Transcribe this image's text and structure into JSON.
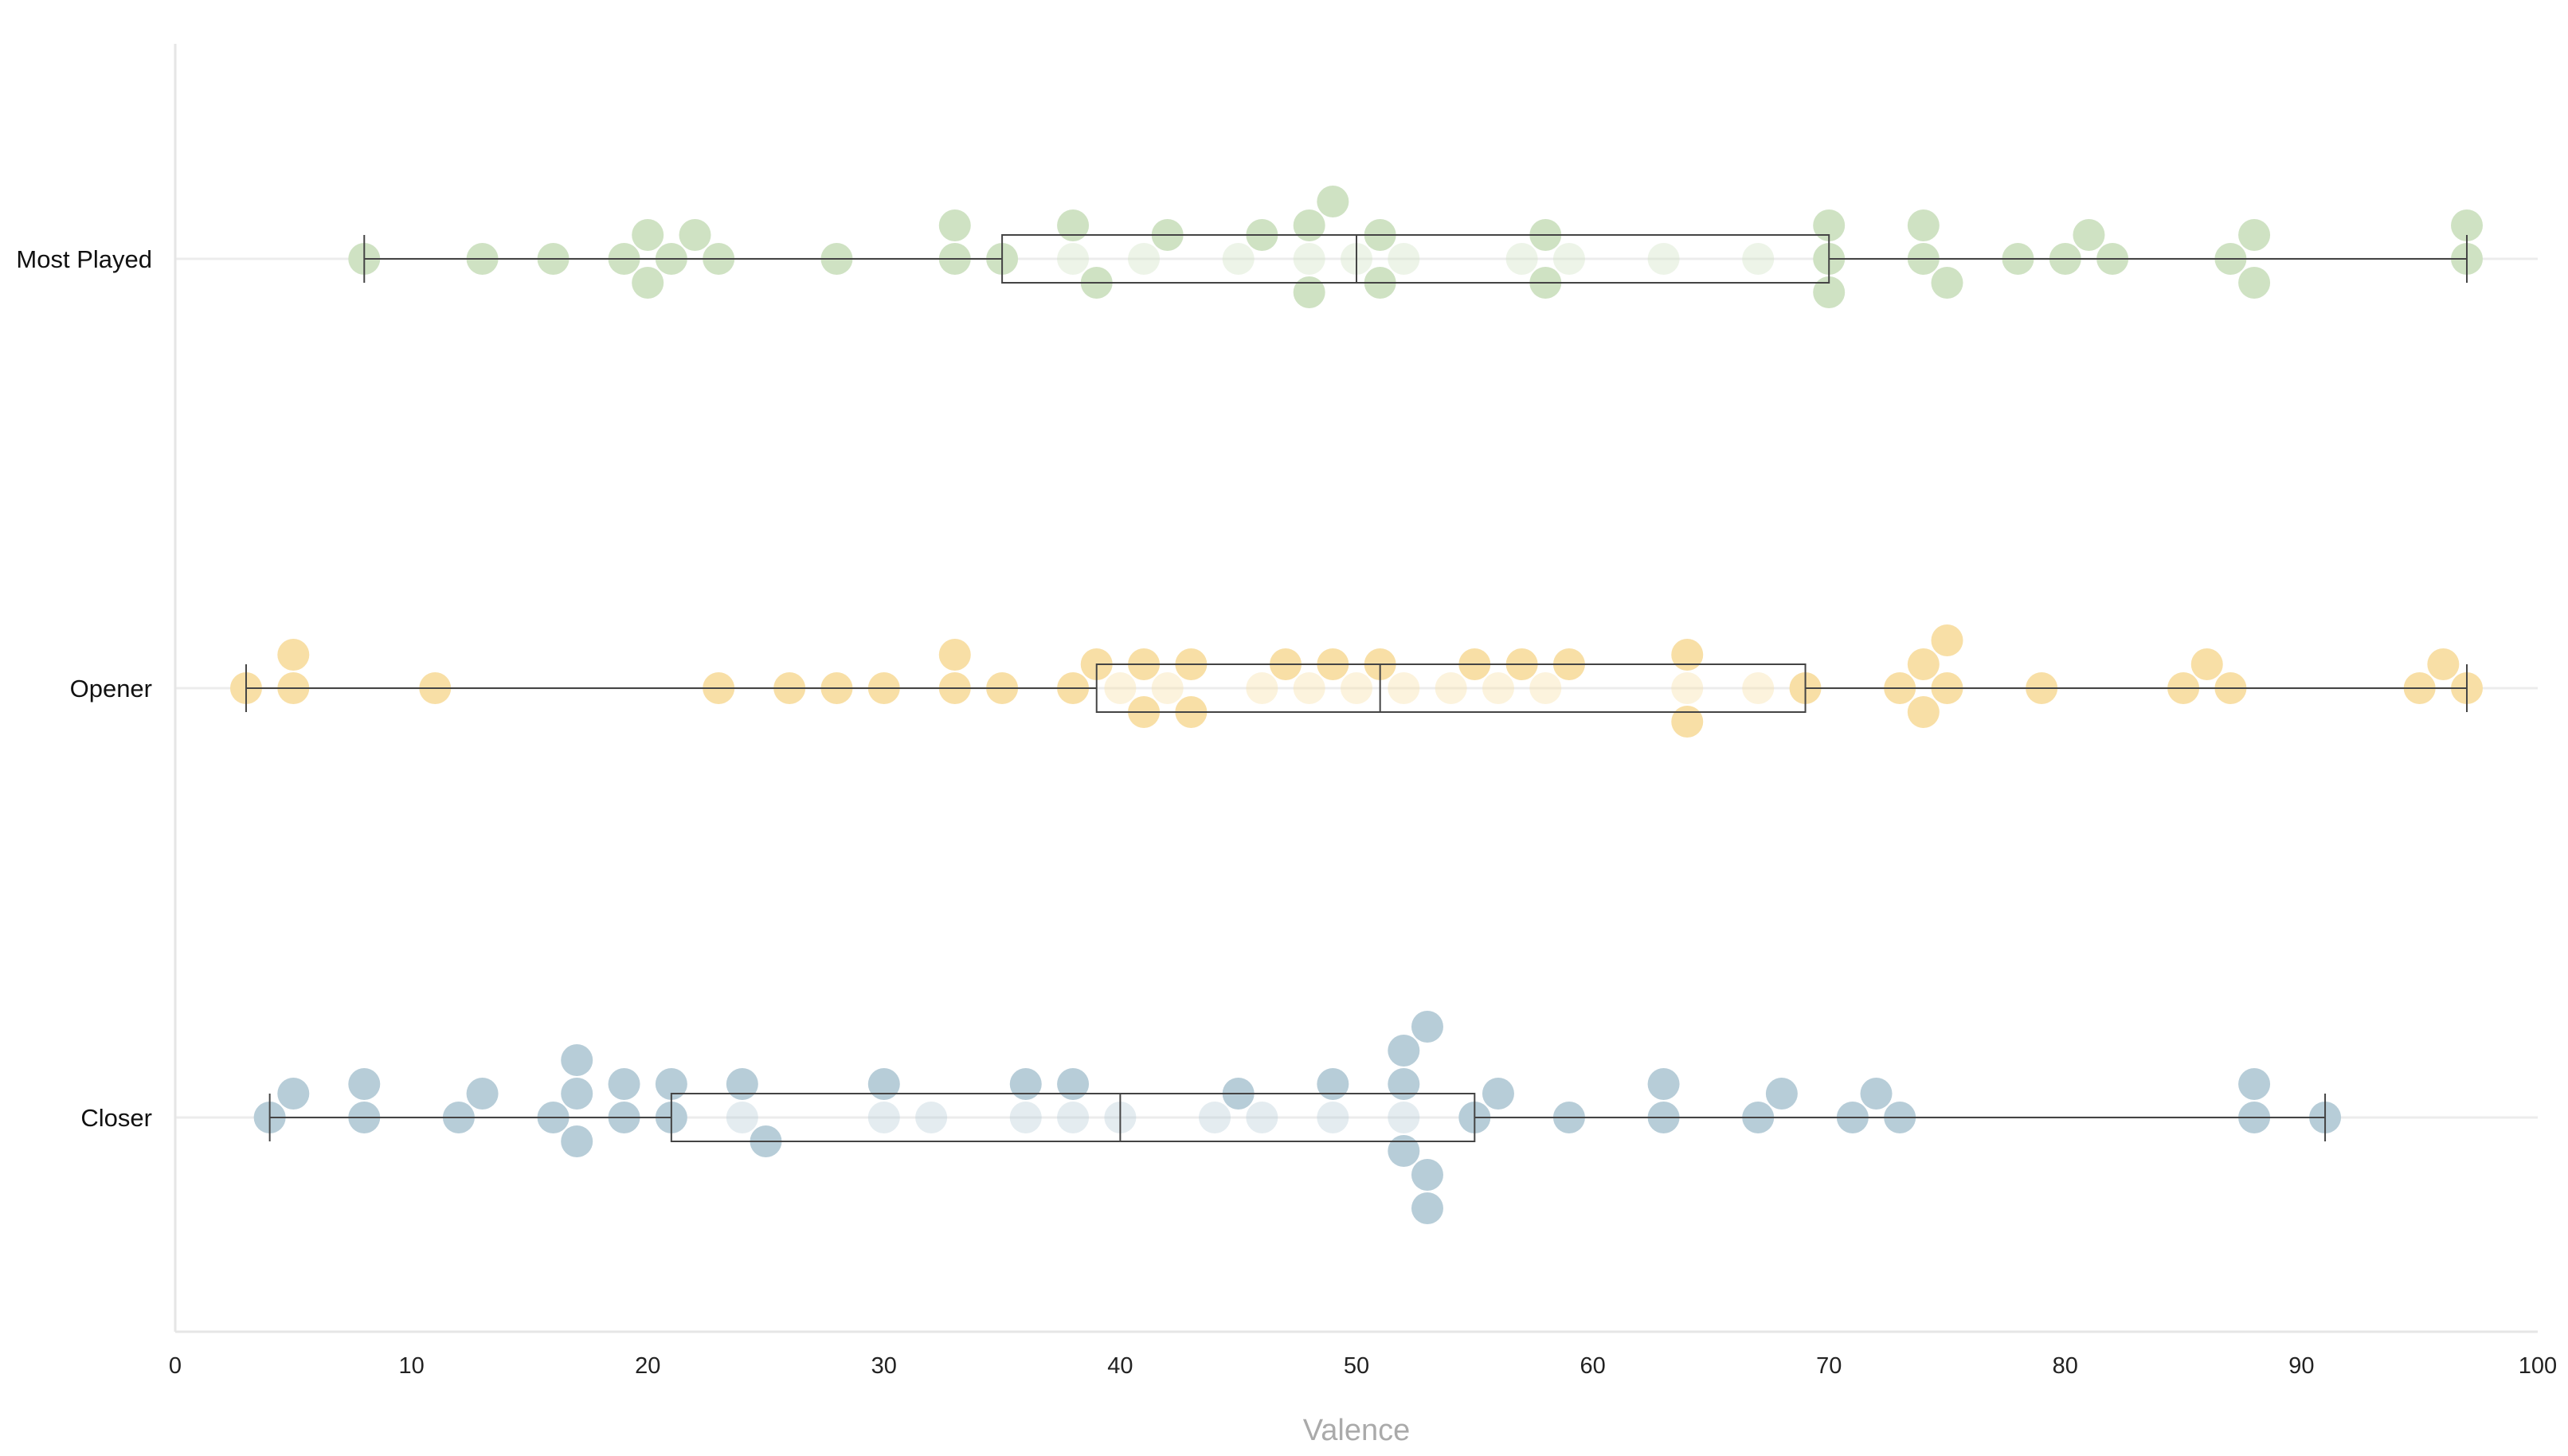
{
  "chart_data": {
    "type": "beeswarm-boxplot",
    "xlabel": "Valence",
    "xlim": [
      0,
      100
    ],
    "xticks": [
      0,
      10,
      20,
      30,
      40,
      50,
      60,
      70,
      80,
      90,
      100
    ],
    "categories": [
      "Most Played",
      "Opener",
      "Closer"
    ],
    "series": [
      {
        "name": "Most Played",
        "color": "#cfe2c3",
        "box": {
          "min": 8,
          "q1": 35,
          "median": 50,
          "q3": 70,
          "max": 97
        },
        "points": [
          8,
          13,
          16,
          19,
          20,
          20,
          21,
          22,
          23,
          28,
          33,
          33,
          35,
          38,
          38,
          39,
          41,
          42,
          45,
          46,
          48,
          48,
          48,
          49,
          50,
          51,
          51,
          52,
          57,
          58,
          58,
          59,
          63,
          67,
          70,
          70,
          70,
          74,
          74,
          75,
          78,
          80,
          81,
          82,
          87,
          88,
          88,
          97,
          97
        ]
      },
      {
        "name": "Opener",
        "color": "#f8dfa6",
        "box": {
          "min": 3,
          "q1": 39,
          "median": 51,
          "q3": 69,
          "max": 97
        },
        "points": [
          3,
          5,
          5,
          11,
          23,
          26,
          28,
          30,
          33,
          33,
          35,
          38,
          39,
          40,
          41,
          41,
          42,
          43,
          43,
          46,
          47,
          48,
          49,
          50,
          51,
          52,
          54,
          55,
          56,
          57,
          58,
          59,
          64,
          64,
          64,
          67,
          69,
          73,
          74,
          74,
          75,
          75,
          79,
          85,
          86,
          87,
          95,
          96,
          97
        ]
      },
      {
        "name": "Closer",
        "color": "#b7cdd8",
        "box": {
          "min": 4,
          "q1": 21,
          "median": 40,
          "q3": 55,
          "max": 91
        },
        "points": [
          4,
          5,
          8,
          8,
          12,
          13,
          16,
          17,
          17,
          17,
          19,
          19,
          21,
          21,
          24,
          24,
          25,
          30,
          30,
          32,
          36,
          36,
          38,
          38,
          40,
          44,
          45,
          46,
          49,
          49,
          52,
          52,
          52,
          52,
          53,
          53,
          53,
          55,
          56,
          59,
          63,
          63,
          67,
          68,
          71,
          72,
          73,
          88,
          88,
          91
        ]
      }
    ]
  }
}
